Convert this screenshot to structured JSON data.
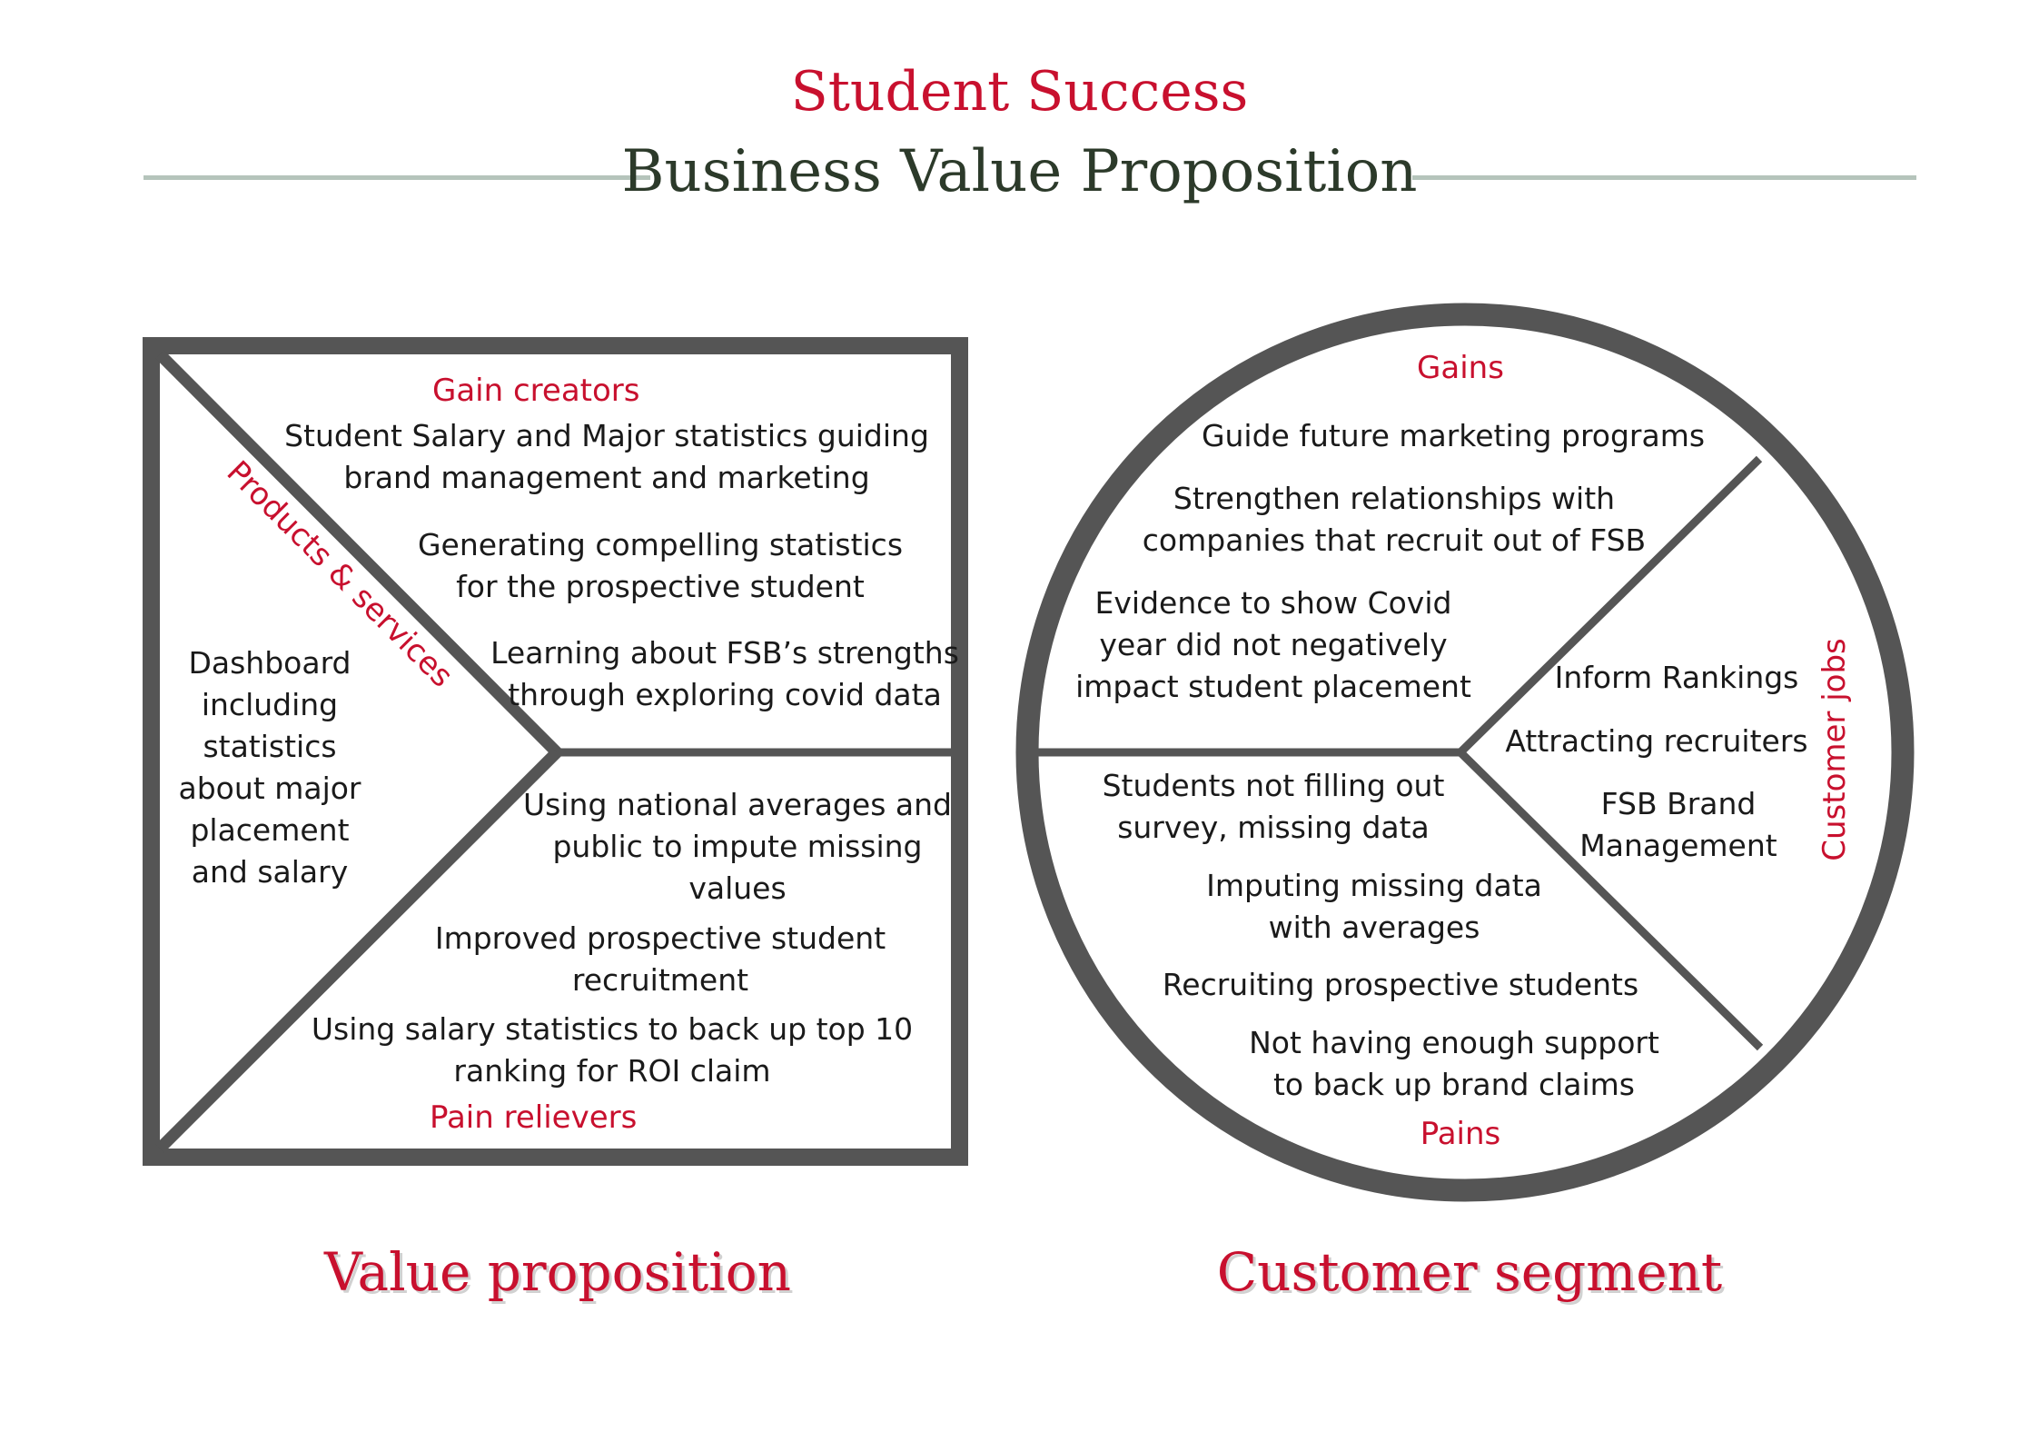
{
  "colors": {
    "red": "#c8102e",
    "dark_green": "#2c3a2a",
    "rule": "#b5c4bb",
    "frame": "#555555",
    "text": "#1a1a1a"
  },
  "title": {
    "line1": "Student Success",
    "line2": "Business Value Proposition"
  },
  "value_proposition": {
    "caption": "Value proposition",
    "gain_creators": {
      "label": "Gain creators",
      "items": [
        "Student Salary and Major statistics guiding\nbrand management and marketing",
        "Generating compelling statistics\nfor the prospective student",
        "Learning about FSB’s strengths\nthrough exploring covid data"
      ]
    },
    "products_services": {
      "label": "Products & services",
      "items": [
        "Dashboard\nincluding\nstatistics\nabout major\nplacement\nand salary"
      ]
    },
    "pain_relievers": {
      "label": "Pain relievers",
      "items": [
        "Using national averages and\npublic to impute missing\nvalues",
        "Improved prospective student\nrecruitment",
        "Using salary statistics to back up top 10\nranking for ROI claim"
      ]
    }
  },
  "customer_segment": {
    "caption": "Customer segment",
    "gains": {
      "label": "Gains",
      "items": [
        "Guide future marketing programs",
        "Strengthen relationships with\ncompanies that recruit out of FSB",
        "Evidence to show Covid\nyear did not negatively\nimpact student placement"
      ]
    },
    "customer_jobs": {
      "label": "Customer jobs",
      "items": [
        "Inform Rankings",
        "Attracting recruiters",
        "FSB Brand\nManagement"
      ]
    },
    "pains": {
      "label": "Pains",
      "items": [
        "Students not filling out\nsurvey, missing data",
        "Imputing missing data\nwith averages",
        "Recruiting prospective students",
        "Not having enough support\nto back up brand claims"
      ]
    }
  }
}
